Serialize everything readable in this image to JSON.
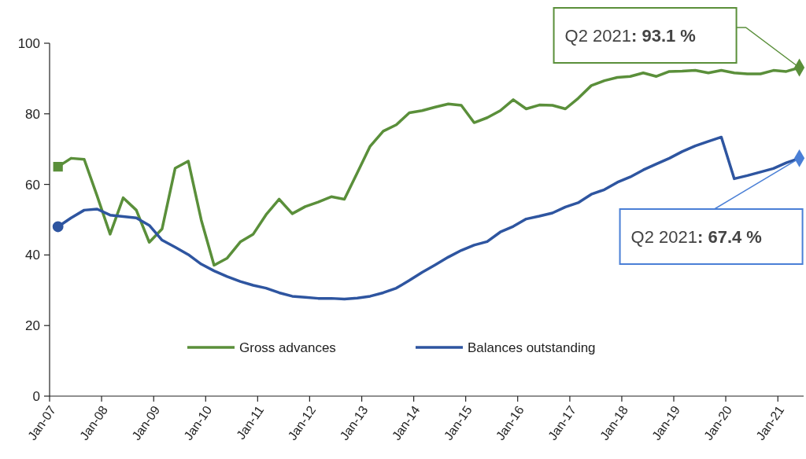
{
  "chart_data": {
    "type": "line",
    "x": [
      "2007-03",
      "2007-06",
      "2007-09",
      "2007-12",
      "2008-03",
      "2008-06",
      "2008-09",
      "2008-12",
      "2009-03",
      "2009-06",
      "2009-09",
      "2009-12",
      "2010-03",
      "2010-06",
      "2010-09",
      "2010-12",
      "2011-03",
      "2011-06",
      "2011-09",
      "2011-12",
      "2012-03",
      "2012-06",
      "2012-09",
      "2012-12",
      "2013-03",
      "2013-06",
      "2013-09",
      "2013-12",
      "2014-03",
      "2014-06",
      "2014-09",
      "2014-12",
      "2015-03",
      "2015-06",
      "2015-09",
      "2015-12",
      "2016-03",
      "2016-06",
      "2016-09",
      "2016-12",
      "2017-03",
      "2017-06",
      "2017-09",
      "2017-12",
      "2018-03",
      "2018-06",
      "2018-09",
      "2018-12",
      "2019-03",
      "2019-06",
      "2019-09",
      "2019-12",
      "2020-03",
      "2020-06",
      "2020-09",
      "2020-12",
      "2021-03",
      "2021-06"
    ],
    "series": [
      {
        "name": "Gross advances",
        "color": "#5a8f3a",
        "values": [
          65,
          67.4,
          67.1,
          56.7,
          45.9,
          56.2,
          52.7,
          43.6,
          47.4,
          64.6,
          66.6,
          49.9,
          37.1,
          39.1,
          43.7,
          45.9,
          51.4,
          55.8,
          51.7,
          53.7,
          55,
          56.5,
          55.8,
          63.3,
          70.8,
          75.1,
          76.9,
          80.3,
          80.9,
          81.9,
          82.8,
          82.4,
          77.5,
          78.9,
          80.9,
          84,
          81.4,
          82.5,
          82.4,
          81.4,
          84.4,
          88,
          89.4,
          90.3,
          90.6,
          91.6,
          90.6,
          92,
          92.1,
          92.3,
          91.6,
          92.3,
          91.6,
          91.3,
          91.3,
          92.3,
          92,
          93.1
        ]
      },
      {
        "name": "Balances outstanding",
        "color": "#2e55a0",
        "values": [
          48,
          50.5,
          52.7,
          53,
          51.3,
          50.9,
          50.5,
          48.4,
          44.2,
          42.2,
          40.1,
          37.4,
          35.5,
          33.9,
          32.5,
          31.4,
          30.6,
          29.3,
          28.3,
          28,
          27.7,
          27.7,
          27.5,
          27.8,
          28.3,
          29.3,
          30.6,
          32.8,
          35.1,
          37.2,
          39.4,
          41.3,
          42.8,
          43.8,
          46.5,
          48.1,
          50.2,
          51,
          51.9,
          53.6,
          54.8,
          57.2,
          58.5,
          60.6,
          62.1,
          64.1,
          65.8,
          67.4,
          69.3,
          70.9,
          72.2,
          73.4,
          61.6,
          62.5,
          63.5,
          64.5,
          66.1,
          67.4
        ]
      },
      {
        "type": "scatter",
        "color": "#5a8f3a",
        "marker": "square",
        "x": [
          "2007-03"
        ],
        "values": [
          65
        ]
      },
      {
        "type": "scatter",
        "color": "#2e55a0",
        "marker": "circle",
        "x": [
          "2007-03"
        ],
        "values": [
          48
        ]
      },
      {
        "type": "scatter",
        "color": "#5a8f3a",
        "marker": "diamond",
        "x": [
          "2021-06"
        ],
        "values": [
          93.1
        ]
      },
      {
        "type": "scatter",
        "color": "#4a7fd6",
        "marker": "diamond",
        "x": [
          "2021-06"
        ],
        "values": [
          67.4
        ]
      }
    ],
    "xlim": [
      "2007-01",
      "2021-07"
    ],
    "xticks": [
      {
        "value": "2007-01",
        "label": "Jan-07"
      },
      {
        "value": "2008-01",
        "label": "Jan-08"
      },
      {
        "value": "2009-01",
        "label": "Jan-09"
      },
      {
        "value": "2010-01",
        "label": "Jan-10"
      },
      {
        "value": "2011-01",
        "label": "Jan-11"
      },
      {
        "value": "2012-01",
        "label": "Jan-12"
      },
      {
        "value": "2013-01",
        "label": "Jan-13"
      },
      {
        "value": "2014-01",
        "label": "Jan-14"
      },
      {
        "value": "2015-01",
        "label": "Jan-15"
      },
      {
        "value": "2016-01",
        "label": "Jan-16"
      },
      {
        "value": "2017-01",
        "label": "Jan-17"
      },
      {
        "value": "2018-01",
        "label": "Jan-18"
      },
      {
        "value": "2019-01",
        "label": "Jan-19"
      },
      {
        "value": "2020-01",
        "label": "Jan-20"
      },
      {
        "value": "2021-01",
        "label": "Jan-21"
      }
    ],
    "ylim": [
      0,
      100
    ],
    "yticks": [
      0,
      20,
      40,
      60,
      80,
      100
    ],
    "grid": false,
    "legend": "bottom",
    "line_style": "solid",
    "annotations": [
      "Q2 2021: 93.1 %",
      {
        "text": "Q2 2021: 67.4 %",
        "x": "2021-06",
        "y": 67.4
      }
    ]
  }
}
